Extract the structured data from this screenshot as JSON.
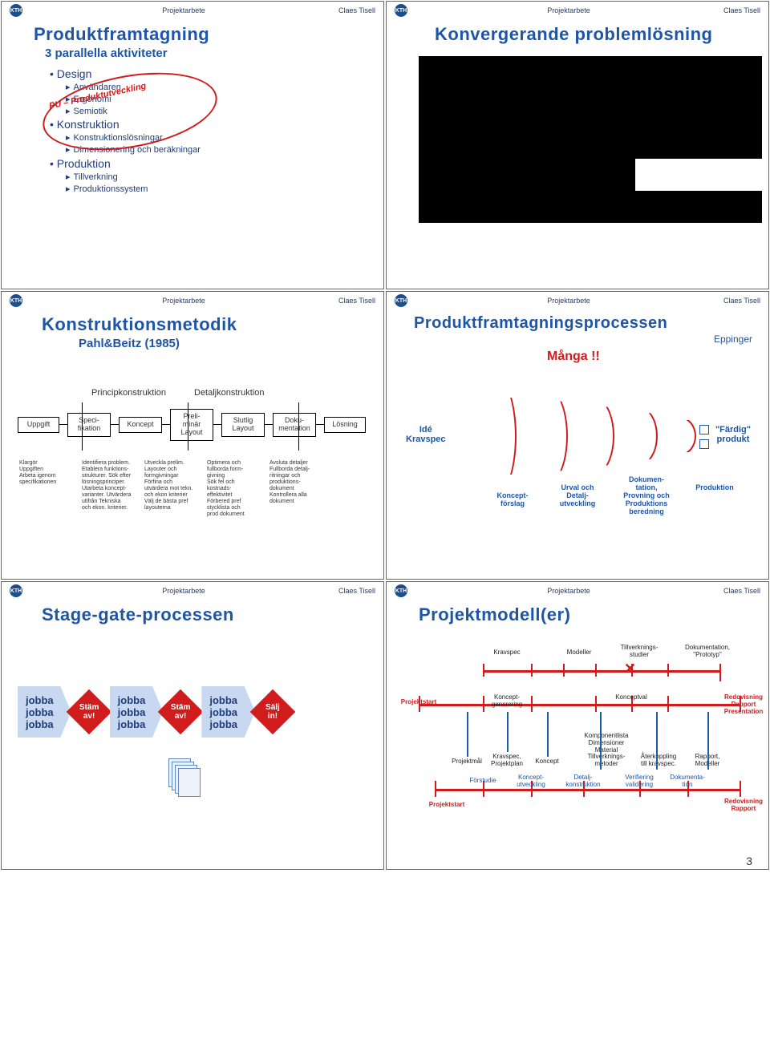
{
  "header": {
    "badge": "KTH",
    "center": "Projektarbete",
    "author": "Claes Tisell"
  },
  "page_number": "3",
  "colors": {
    "accent": "#1f55a5",
    "red": "#d01c1c",
    "lightblue": "#c7d8f0"
  },
  "s1": {
    "title": "Produktframtagning",
    "subtitle": "3 parallella aktiviteter",
    "items": [
      {
        "level": 0,
        "text": "Design"
      },
      {
        "level": 1,
        "text": "Användaren"
      },
      {
        "level": 1,
        "text": "Ergonomi"
      },
      {
        "level": 1,
        "text": "Semiotik"
      },
      {
        "level": 0,
        "text": "Konstruktion"
      },
      {
        "level": 1,
        "text": "Konstruktionslösningar"
      },
      {
        "level": 1,
        "text": "Dimensionering och beräkningar"
      },
      {
        "level": 0,
        "text": "Produktion"
      },
      {
        "level": 1,
        "text": "Tillverkning"
      },
      {
        "level": 1,
        "text": "Produktionssystem"
      }
    ],
    "ellipse_label": "PU – Produktutveckling"
  },
  "s2": {
    "title": "Konvergerande problemlösning"
  },
  "s3": {
    "title": "Konstruktionsmetodik",
    "subtitle": "Pahl&Beitz (1985)",
    "phase_labels": [
      "Principkonstruktion",
      "Detaljkonstruktion"
    ],
    "boxes": [
      "Uppgift",
      "Speci-\nfikation",
      "Koncept",
      "Preli-\nminär\nLayout",
      "Slutlig\nLayout",
      "Doku-\nmentation",
      "Lösning"
    ],
    "details": [
      "Klargör\nUppgiften\nArbeta igenom\nspecifikationen",
      "Identifiera problem.\nEtablera funktions-\nstrukturer. Sök efter\nlösningsprinciper.\nUtarbeta koncept-\nvarianter. Utvärdera\nutifrån Tekniska\noch ekon. kriterier.",
      "Utveckla prelim.\nLayouter och\nformgivningar\nFörfina och\nutvärdera mot tekn.\noch ekon kriterier\nVälj de bästa pref\nlayouterna",
      "Optimera och\nfullborda form-\ngivning\nSök fel och\nkostnads-\neffektivitet\nFörbered pref\nstycklista och\nprod dokument",
      "Avsluta detaljer\nFullborda detalj-\nritningar och\nproduktions-\ndokument\nKontrollera alla\ndokument"
    ]
  },
  "s4": {
    "title": "Produktframtagningsprocessen",
    "source": "Eppinger",
    "many": "Många !!",
    "left": "Idé\nKravspec",
    "right": "\"Färdig\"\nprodukt",
    "stages": [
      "Koncept-\nförslag",
      "Urval och\nDetalj-\nutveckling",
      "Dokumen-\ntation,\nProvning och\nProduktions\nberedning",
      "Produktion"
    ]
  },
  "s5": {
    "title": "Stage-gate-processen",
    "work": "jobba\njobba\njobba",
    "gate": "Stäm\nav!",
    "sell": "Sälj\nin!"
  },
  "s6": {
    "title": "Projektmodell(er)",
    "top_labels": [
      "Kravspec",
      "Modeller",
      "Tillverknings-\nstudier",
      "Dokumentation,\n\"Prototyp\""
    ],
    "row1_left": "Projektstart",
    "row1_mid1": "Koncept-\ngenerering",
    "row1_mid2": "Konceptval",
    "row1_right": "Redovisning\nRapport\nPresentation",
    "mid_labels": [
      "Projektmål",
      "Kravspec,\nProjektplan",
      "Koncept",
      "Komponentlista\nDimensioner\nMaterial\nTillverknings-\nmetoder",
      "Återkoppling\ntill kravspec.",
      "Rapport,\nModeller"
    ],
    "row2_left": "Projektstart",
    "row2_phases": [
      "Förstudie",
      "Koncept-\nutveckling",
      "Detalj-\nkonstruktion",
      "Verifiering\nvalidering",
      "Dokumenta-\ntion"
    ],
    "row2_right": "Redovisning\nRapport"
  }
}
